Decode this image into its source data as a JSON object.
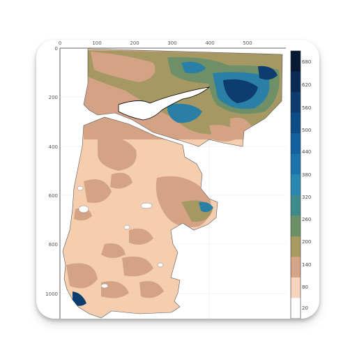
{
  "icon": {
    "name": "contour-map-app-icon",
    "background": "#ffffff"
  },
  "axes": {
    "x_ticks": [
      "0",
      "100",
      "200",
      "300",
      "400",
      "500"
    ],
    "y_ticks": [
      "0",
      "200",
      "400",
      "600",
      "800",
      "1000"
    ]
  },
  "colorbar": {
    "labels": [
      "680",
      "620",
      "560",
      "500",
      "440",
      "380",
      "320",
      "260",
      "200",
      "140",
      "80",
      "20"
    ],
    "colors": [
      "#081a33",
      "#0c2a56",
      "#0d3d6e",
      "#0c4d86",
      "#1461a0",
      "#1a74ab",
      "#2a87b1",
      "#3f8a8a",
      "#6b9266",
      "#a99a62",
      "#d6a488",
      "#f7d5bd",
      "#ffffff"
    ]
  },
  "map_colors": {
    "lowland": "#f5ceb0",
    "low_hill": "#d4a386",
    "hill": "#a59863",
    "mid": "#6e8f68",
    "high": "#2a7fa6",
    "peak": "#0d3d6e",
    "water": "#ffffff"
  }
}
